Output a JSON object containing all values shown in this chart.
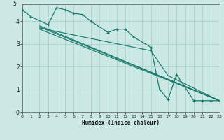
{
  "xlabel": "Humidex (Indice chaleur)",
  "bg_color": "#cce8e4",
  "grid_color": "#aad4cc",
  "line_color": "#1a7a6e",
  "xlim": [
    0,
    23
  ],
  "ylim": [
    0,
    4.75
  ],
  "yticks": [
    0,
    1,
    2,
    3,
    4
  ],
  "xticks": [
    0,
    1,
    2,
    3,
    4,
    5,
    6,
    7,
    8,
    9,
    10,
    11,
    12,
    13,
    14,
    15,
    16,
    17,
    18,
    19,
    20,
    21,
    22,
    23
  ],
  "wiggly": {
    "x": [
      0,
      1,
      3,
      4,
      5,
      6,
      7,
      8,
      10,
      11,
      12,
      13,
      15,
      16,
      17,
      18,
      20,
      21,
      22,
      23
    ],
    "y": [
      4.5,
      4.2,
      3.85,
      4.6,
      4.5,
      4.35,
      4.3,
      4.0,
      3.5,
      3.65,
      3.65,
      3.3,
      2.85,
      1.0,
      0.55,
      1.65,
      0.5,
      0.5,
      0.5,
      0.5
    ]
  },
  "straight_lines": [
    {
      "x": [
        2,
        23
      ],
      "y": [
        3.8,
        0.5
      ]
    },
    {
      "x": [
        2,
        23
      ],
      "y": [
        3.75,
        0.5
      ]
    },
    {
      "x": [
        2,
        15,
        17,
        23
      ],
      "y": [
        3.7,
        2.7,
        1.6,
        0.5
      ]
    },
    {
      "x": [
        2,
        23
      ],
      "y": [
        3.65,
        0.5
      ]
    }
  ]
}
